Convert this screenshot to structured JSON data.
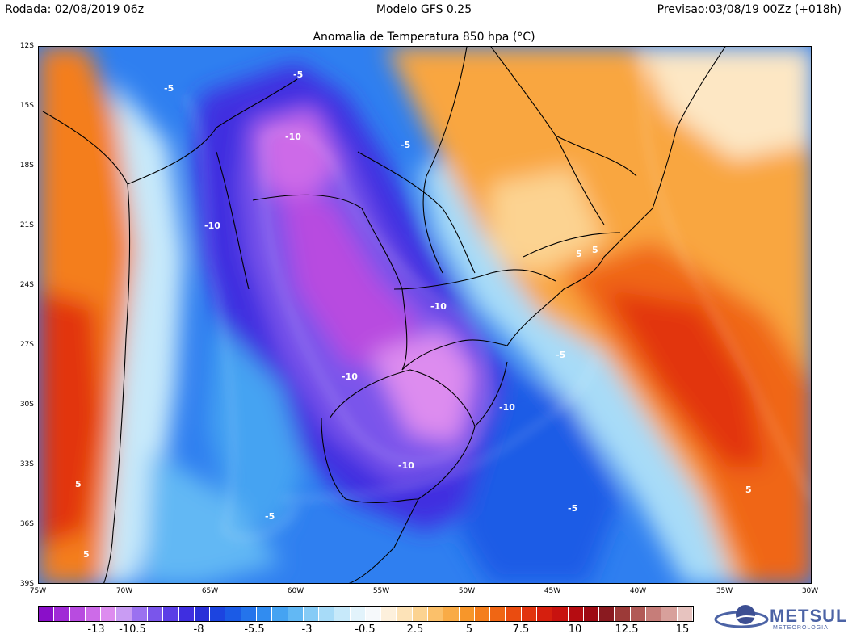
{
  "header": {
    "run": "Rodada: 02/08/2019 06z",
    "model": "Modelo GFS 0.25",
    "valid": "Previsao:03/08/19 00Zz (+018h)",
    "title": "Anomalia de Temperatura 850 hpa (°C)"
  },
  "lat_labels": [
    "12S",
    "15S",
    "18S",
    "21S",
    "24S",
    "27S",
    "30S",
    "33S",
    "36S",
    "39S"
  ],
  "lon_labels": [
    "75W",
    "70W",
    "65W",
    "60W",
    "55W",
    "50W",
    "45W",
    "40W",
    "35W",
    "30W"
  ],
  "contour_labels": [
    "-5",
    "-5",
    "-10",
    "-5",
    "-10",
    "-10",
    "-10",
    "-10",
    "-10",
    "-5",
    "-5",
    "-5",
    "5",
    "5",
    "5",
    "5",
    "5"
  ],
  "colorbar": {
    "labels": [
      "-13",
      "-10.5",
      "-8",
      "-5.5",
      "-3",
      "-0.5",
      "2.5",
      "5",
      "7.5",
      "10",
      "12.5",
      "15"
    ],
    "colors": [
      "#8a0fc9",
      "#a02ad6",
      "#b84be0",
      "#cd6be8",
      "#dd8cef",
      "#c99cf3",
      "#9b71f0",
      "#7a55eb",
      "#5b3ee6",
      "#3f2ee0",
      "#2a2fd8",
      "#1c44e0",
      "#1b5be6",
      "#2474ec",
      "#318cf0",
      "#45a3f2",
      "#62b8f4",
      "#85cbf6",
      "#a7dbf8",
      "#c7e9fa",
      "#e2f3fb",
      "#f6f9fb",
      "#fdf0dc",
      "#fde3b8",
      "#fcd391",
      "#fbc06a",
      "#f9ab46",
      "#f7962a",
      "#f47e1c",
      "#f06614",
      "#ea4c10",
      "#e2340e",
      "#d61f0e",
      "#c8120f",
      "#b50c11",
      "#9e0a13",
      "#8a1a20",
      "#9c3a38",
      "#b25a57",
      "#c67d79",
      "#d8a09b",
      "#e7c3bf"
    ]
  },
  "logo": {
    "name": "METSUL",
    "sub": "METEOROLOGIA"
  }
}
